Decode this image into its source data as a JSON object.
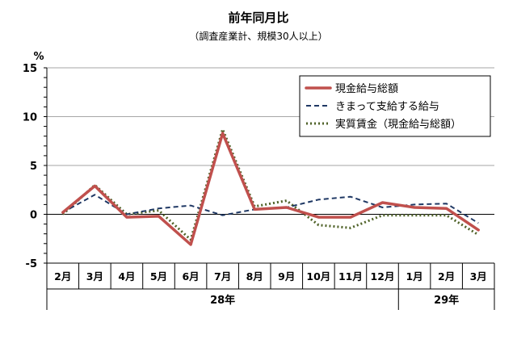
{
  "chart_data": {
    "type": "line",
    "title": "前年同月比",
    "subtitle": "（調査産業計、規模30人以上）",
    "ylabel": "%",
    "ylim": [
      -5,
      15
    ],
    "yticks": [
      15,
      10,
      5,
      0,
      -5
    ],
    "grid": true,
    "legend_position": "top-right",
    "categories": [
      "2月",
      "3月",
      "4月",
      "5月",
      "6月",
      "7月",
      "8月",
      "9月",
      "10月",
      "11月",
      "12月",
      "1月",
      "2月",
      "3月"
    ],
    "year_groups": [
      {
        "label": "28年",
        "start": 0,
        "end": 10
      },
      {
        "label": "29年",
        "start": 11,
        "end": 13
      }
    ],
    "series": [
      {
        "name": "現金給与総額",
        "color": "#c0504d",
        "style": "solid",
        "values": [
          0.2,
          2.9,
          -0.3,
          -0.2,
          -3.1,
          8.3,
          0.5,
          0.7,
          -0.3,
          -0.3,
          1.2,
          0.7,
          0.6,
          -1.6
        ]
      },
      {
        "name": "きまって支給する給与",
        "color": "#1f3864",
        "style": "dashed",
        "values": [
          0.2,
          2.0,
          0.0,
          0.6,
          0.9,
          -0.1,
          0.5,
          0.7,
          1.5,
          1.8,
          0.7,
          1.0,
          1.1,
          -0.9
        ]
      },
      {
        "name": "実質賃金（現金給与総額）",
        "color": "#4f6228",
        "style": "dotted",
        "values": [
          0.0,
          3.0,
          0.0,
          0.4,
          -2.6,
          8.7,
          0.8,
          1.4,
          -1.1,
          -1.4,
          -0.1,
          -0.1,
          -0.1,
          -2.1
        ]
      }
    ]
  }
}
